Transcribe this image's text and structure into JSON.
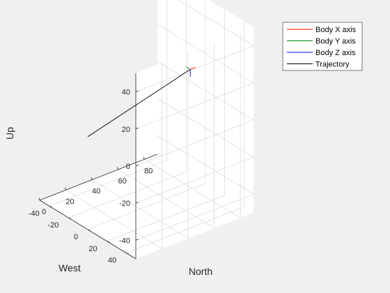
{
  "chart_data": {
    "type": "line",
    "projection": "3d",
    "title": "",
    "xlabel": "North",
    "ylabel": "West",
    "zlabel": "Up",
    "xlim": [
      0,
      90
    ],
    "ylim": [
      -50,
      50
    ],
    "zlim": [
      -50,
      50
    ],
    "xticks": [
      0,
      20,
      40,
      60,
      80
    ],
    "yticks": [
      -40,
      -20,
      0,
      20,
      40
    ],
    "zticks": [
      -40,
      -20,
      0,
      20,
      40
    ],
    "grid": true,
    "legend_position": "top-right",
    "series": [
      {
        "name": "Body X axis",
        "color": "#ff0000",
        "x": [
          85.0,
          89.0
        ],
        "y": [
          -9.0,
          -9.0
        ],
        "z": [
          10.0,
          10.0
        ]
      },
      {
        "name": "Body Y axis",
        "color": "#008000",
        "x": [
          85.0,
          85.0
        ],
        "y": [
          -9.0,
          -13.0
        ],
        "z": [
          10.0,
          10.0
        ]
      },
      {
        "name": "Body Z axis",
        "color": "#0000ff",
        "x": [
          85.0,
          85.0
        ],
        "y": [
          -9.0,
          -9.0
        ],
        "z": [
          10.0,
          6.0
        ]
      },
      {
        "name": "Trajectory",
        "color": "#000000",
        "x": [
          0,
          85.0
        ],
        "y": [
          0,
          -9.0
        ],
        "z": [
          0,
          10.0
        ]
      }
    ]
  }
}
